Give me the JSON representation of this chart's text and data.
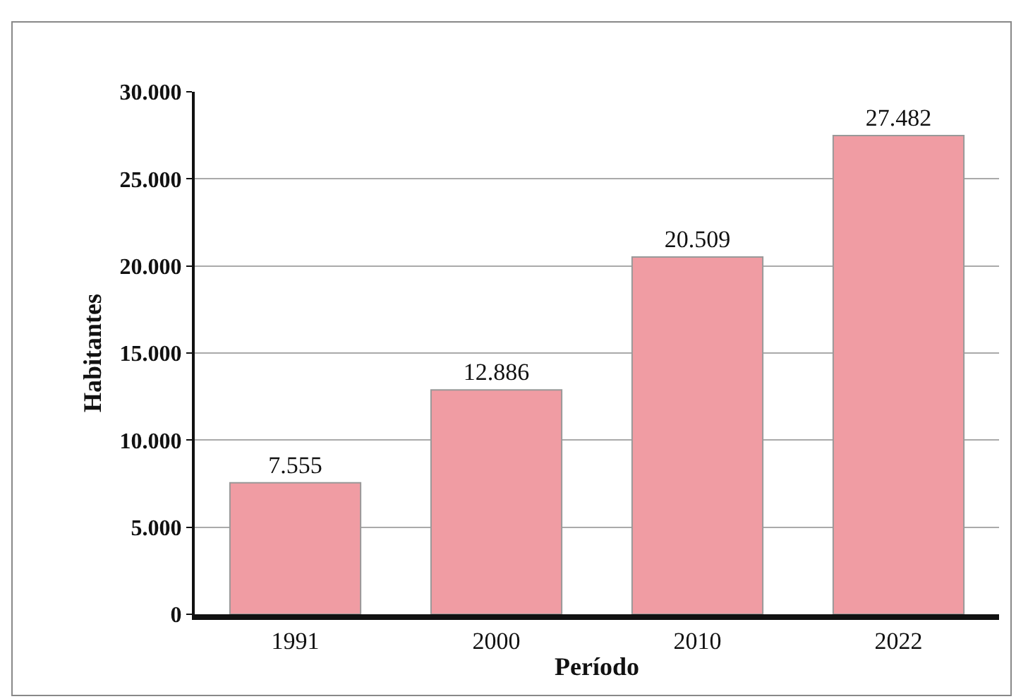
{
  "chart_data": {
    "type": "bar",
    "xlabel": "Período",
    "ylabel": "Habitantes",
    "categories": [
      "1991",
      "2000",
      "2010",
      "2022"
    ],
    "values": [
      7555,
      12886,
      20509,
      27482
    ],
    "value_labels": [
      "7.555",
      "12.886",
      "20.509",
      "27.482"
    ],
    "color": "#f09ca3",
    "ylim": [
      0,
      30000
    ],
    "yticks": [
      {
        "value": 0,
        "label": "0"
      },
      {
        "value": 5000,
        "label": "5.000"
      },
      {
        "value": 10000,
        "label": "10.000"
      },
      {
        "value": 15000,
        "label": "15.000"
      },
      {
        "value": 20000,
        "label": "20.000"
      },
      {
        "value": 25000,
        "label": "25.000"
      },
      {
        "value": 30000,
        "label": "30.000"
      }
    ],
    "grid": "y",
    "legend": false
  }
}
